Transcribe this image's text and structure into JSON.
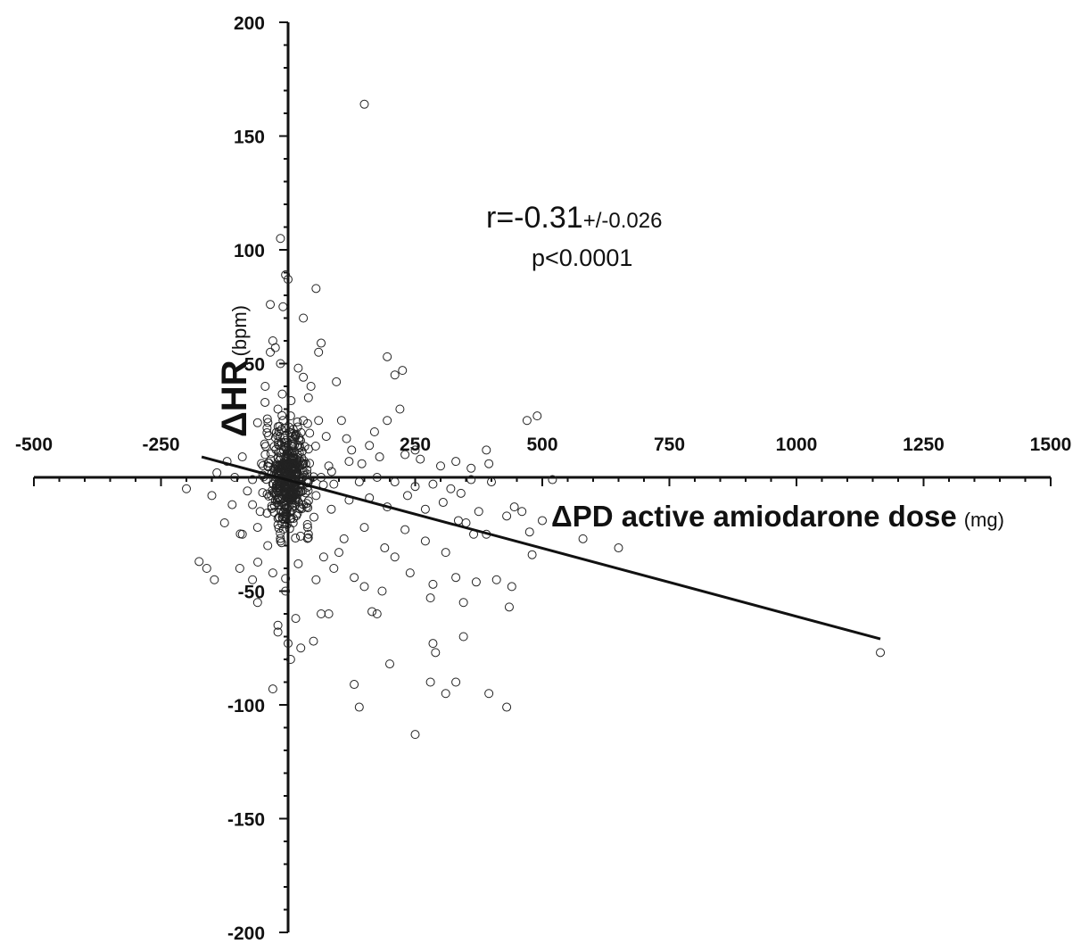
{
  "chart_data": {
    "type": "scatter",
    "xlabel": {
      "main": "ΔPD active amiodarone dose",
      "unit": "(mg)"
    },
    "ylabel": {
      "main": "ΔHR",
      "unit": "(bpm)"
    },
    "xlim": [
      -500,
      1500
    ],
    "ylim": [
      -200,
      200
    ],
    "x_ticks": [
      -500,
      -250,
      250,
      500,
      750,
      1000,
      1250,
      1500
    ],
    "y_ticks": [
      200,
      150,
      100,
      50,
      -50,
      -100,
      -150,
      -200
    ],
    "x_tick_labels": [
      "-500",
      "-250",
      "250",
      "500",
      "750",
      "1000",
      "1250",
      "1500"
    ],
    "y_tick_labels": [
      "200",
      "150",
      "100",
      "50",
      "-50",
      "-100",
      "-150",
      "-200"
    ],
    "annotation": {
      "r_main": "r=-0.31",
      "r_ci": "+/-0.026",
      "p": "p<0.0001"
    },
    "regression_line": {
      "x": [
        -170,
        1165
      ],
      "y": [
        9,
        -71
      ]
    },
    "marker": "open-circle",
    "grid": false,
    "legend": "none",
    "series": [
      {
        "points": [
          [
            150,
            164
          ],
          [
            -15,
            105
          ],
          [
            -5,
            89
          ],
          [
            0,
            87
          ],
          [
            55,
            83
          ],
          [
            -35,
            76
          ],
          [
            -10,
            75
          ],
          [
            30,
            70
          ],
          [
            -30,
            60
          ],
          [
            -25,
            57
          ],
          [
            65,
            59
          ],
          [
            60,
            55
          ],
          [
            -35,
            55
          ],
          [
            -15,
            50
          ],
          [
            -45,
            40
          ],
          [
            20,
            48
          ],
          [
            195,
            53
          ],
          [
            225,
            47
          ],
          [
            210,
            45
          ],
          [
            30,
            44
          ],
          [
            45,
            40
          ],
          [
            95,
            42
          ],
          [
            40,
            35
          ],
          [
            -20,
            30
          ],
          [
            5,
            27
          ],
          [
            -10,
            25
          ],
          [
            30,
            25
          ],
          [
            60,
            25
          ],
          [
            105,
            25
          ],
          [
            220,
            30
          ],
          [
            195,
            25
          ],
          [
            490,
            27
          ],
          [
            -60,
            24
          ],
          [
            470,
            25
          ],
          [
            170,
            20
          ],
          [
            15,
            18
          ],
          [
            75,
            18
          ],
          [
            115,
            17
          ],
          [
            160,
            14
          ],
          [
            125,
            12
          ],
          [
            390,
            12
          ],
          [
            -120,
            7
          ],
          [
            -90,
            9
          ],
          [
            -40,
            5
          ],
          [
            -20,
            3
          ],
          [
            10,
            8
          ],
          [
            35,
            6
          ],
          [
            80,
            5
          ],
          [
            120,
            7
          ],
          [
            145,
            6
          ],
          [
            180,
            9
          ],
          [
            230,
            10
          ],
          [
            260,
            8
          ],
          [
            300,
            5
          ],
          [
            330,
            7
          ],
          [
            360,
            4
          ],
          [
            395,
            6
          ],
          [
            -140,
            2
          ],
          [
            -105,
            0
          ],
          [
            -70,
            -1
          ],
          [
            -50,
            1
          ],
          [
            -30,
            -3
          ],
          [
            -10,
            0
          ],
          [
            15,
            1
          ],
          [
            40,
            -2
          ],
          [
            65,
            0
          ],
          [
            90,
            -3
          ],
          [
            140,
            -2
          ],
          [
            175,
            0
          ],
          [
            210,
            -2
          ],
          [
            250,
            -4
          ],
          [
            285,
            -3
          ],
          [
            320,
            -5
          ],
          [
            360,
            -1
          ],
          [
            400,
            -2
          ],
          [
            520,
            -1
          ],
          [
            -200,
            -5
          ],
          [
            -150,
            -8
          ],
          [
            -110,
            -12
          ],
          [
            -80,
            -6
          ],
          [
            -55,
            -15
          ],
          [
            -25,
            -10
          ],
          [
            5,
            -6
          ],
          [
            30,
            -12
          ],
          [
            55,
            -8
          ],
          [
            85,
            -14
          ],
          [
            120,
            -10
          ],
          [
            160,
            -9
          ],
          [
            195,
            -13
          ],
          [
            235,
            -8
          ],
          [
            270,
            -14
          ],
          [
            305,
            -11
          ],
          [
            340,
            -7
          ],
          [
            375,
            -15
          ],
          [
            445,
            -13
          ],
          [
            -125,
            -20
          ],
          [
            -90,
            -25
          ],
          [
            -60,
            -22
          ],
          [
            -40,
            -30
          ],
          [
            -15,
            -28
          ],
          [
            10,
            -20
          ],
          [
            40,
            -25
          ],
          [
            70,
            -35
          ],
          [
            110,
            -27
          ],
          [
            150,
            -22
          ],
          [
            190,
            -31
          ],
          [
            230,
            -23
          ],
          [
            270,
            -28
          ],
          [
            310,
            -33
          ],
          [
            350,
            -20
          ],
          [
            390,
            -25
          ],
          [
            430,
            -17
          ],
          [
            -95,
            -40
          ],
          [
            -70,
            -45
          ],
          [
            -30,
            -42
          ],
          [
            -5,
            -50
          ],
          [
            20,
            -38
          ],
          [
            55,
            -45
          ],
          [
            90,
            -40
          ],
          [
            130,
            -44
          ],
          [
            185,
            -50
          ],
          [
            240,
            -42
          ],
          [
            285,
            -47
          ],
          [
            330,
            -44
          ],
          [
            370,
            -46
          ],
          [
            410,
            -45
          ],
          [
            440,
            -48
          ],
          [
            -60,
            -55
          ],
          [
            -20,
            -65
          ],
          [
            15,
            -62
          ],
          [
            65,
            -60
          ],
          [
            80,
            -60
          ],
          [
            165,
            -59
          ],
          [
            175,
            -60
          ],
          [
            280,
            -53
          ],
          [
            345,
            -55
          ],
          [
            435,
            -57
          ],
          [
            345,
            -70
          ],
          [
            -20,
            -68
          ],
          [
            0,
            -73
          ],
          [
            25,
            -75
          ],
          [
            50,
            -72
          ],
          [
            5,
            -80
          ],
          [
            -30,
            -93
          ],
          [
            130,
            -91
          ],
          [
            200,
            -82
          ],
          [
            140,
            -101
          ],
          [
            285,
            -73
          ],
          [
            290,
            -77
          ],
          [
            280,
            -90
          ],
          [
            330,
            -90
          ],
          [
            310,
            -95
          ],
          [
            395,
            -95
          ],
          [
            430,
            -101
          ],
          [
            250,
            -113
          ],
          [
            -160,
            -40
          ],
          [
            -145,
            -45
          ],
          [
            -175,
            -37
          ],
          [
            -70,
            -12
          ],
          [
            -45,
            10
          ],
          [
            -20,
            -18
          ],
          [
            100,
            -33
          ],
          [
            150,
            -48
          ],
          [
            210,
            -35
          ],
          [
            335,
            -19
          ],
          [
            365,
            -25
          ],
          [
            475,
            -24
          ],
          [
            480,
            -34
          ],
          [
            500,
            -19
          ],
          [
            580,
            -27
          ],
          [
            650,
            -31
          ],
          [
            1165,
            -77
          ],
          [
            250,
            12
          ],
          [
            460,
            -15
          ]
        ]
      }
    ]
  }
}
